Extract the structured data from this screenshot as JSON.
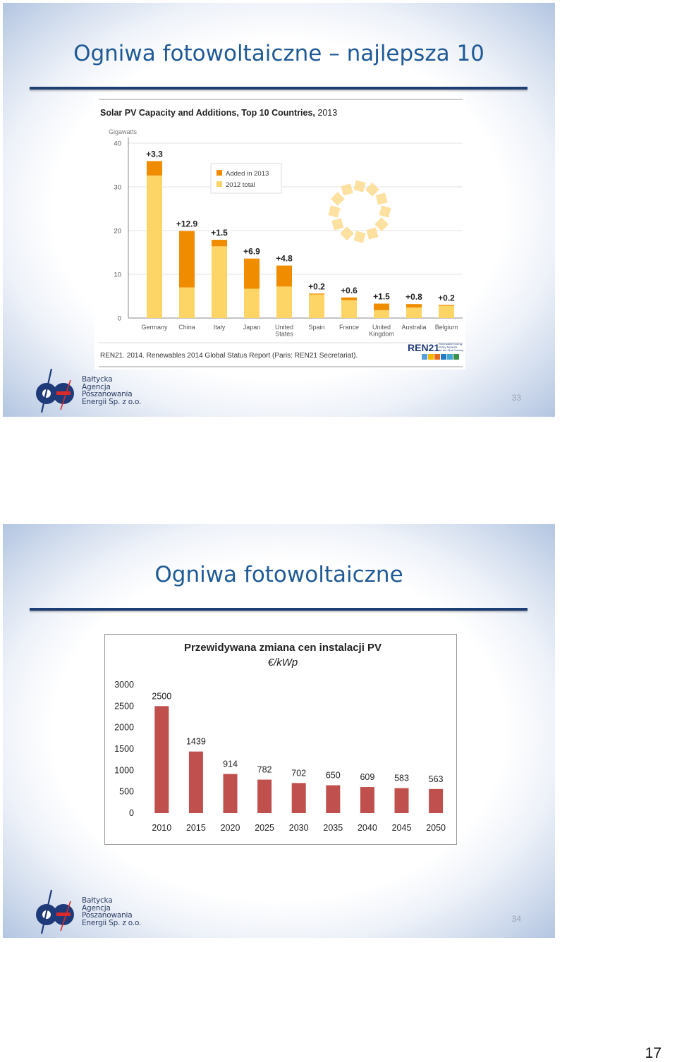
{
  "slides": [
    {
      "title": "Ogniwa fotowoltaiczne – najlepsza 10",
      "slide_number": "33",
      "logo_lines": [
        "Bałtycka",
        "Agencja",
        "Poszanowania",
        "Energii Sp. z o.o."
      ]
    },
    {
      "title": "Ogniwa fotowoltaiczne",
      "slide_number": "34",
      "logo_lines": [
        "Bałtycka",
        "Agencja",
        "Poszanowania",
        "Energii Sp. z o.o."
      ]
    }
  ],
  "page_number": "17",
  "chart_data": [
    {
      "type": "bar",
      "stacked": true,
      "title": "Solar PV Capacity and Additions, Top 10 Countries,",
      "title_year": "2013",
      "ylabel": "Gigawatts",
      "ylim": [
        0,
        40
      ],
      "yticks": [
        "0",
        "10",
        "20",
        "30",
        "40"
      ],
      "grid": true,
      "legend_position": "top-center",
      "categories": [
        "Germany",
        "China",
        "Italy",
        "Japan",
        "United States",
        "Spain",
        "France",
        "United Kingdom",
        "Australia",
        "Belgium"
      ],
      "category_lines": [
        [
          "Germany"
        ],
        [
          "China"
        ],
        [
          "Italy"
        ],
        [
          "Japan"
        ],
        [
          "United",
          "States"
        ],
        [
          "Spain"
        ],
        [
          "France"
        ],
        [
          "United",
          "Kingdom"
        ],
        [
          "Australia"
        ],
        [
          "Belgium"
        ]
      ],
      "series": [
        {
          "name": "2012 total",
          "color": "#fdd566",
          "values": [
            32.6,
            7.0,
            16.4,
            6.7,
            7.2,
            5.4,
            4.1,
            1.8,
            2.4,
            2.8
          ]
        },
        {
          "name": "Added in 2013",
          "color": "#f08c00",
          "values": [
            3.3,
            12.9,
            1.5,
            6.9,
            4.8,
            0.2,
            0.6,
            1.5,
            0.8,
            0.2
          ]
        }
      ],
      "data_labels": [
        "+3.3",
        "+12.9",
        "+1.5",
        "+6.9",
        "+4.8",
        "+0.2",
        "+0.6",
        "+1.5",
        "+0.8",
        "+0.2"
      ],
      "source": "REN21. 2014. Renewables 2014 Global Status Report (Paris: REN21 Secretariat).",
      "brand": "REN21",
      "brand_tagline": [
        "Renewable Energy",
        "Policy Network",
        "for the 21st Century"
      ]
    },
    {
      "type": "bar",
      "title": "Przewidywana zmiana cen instalacji PV",
      "subtitle": "€/kWp",
      "ylim": [
        0,
        3000
      ],
      "yticks": [
        "0",
        "500",
        "1000",
        "1500",
        "2000",
        "2500",
        "3000"
      ],
      "categories": [
        "2010",
        "2015",
        "2020",
        "2025",
        "2030",
        "2035",
        "2040",
        "2045",
        "2050"
      ],
      "values": [
        2500,
        1439,
        914,
        782,
        702,
        650,
        609,
        583,
        563
      ],
      "bar_color": "#c0504d"
    }
  ]
}
